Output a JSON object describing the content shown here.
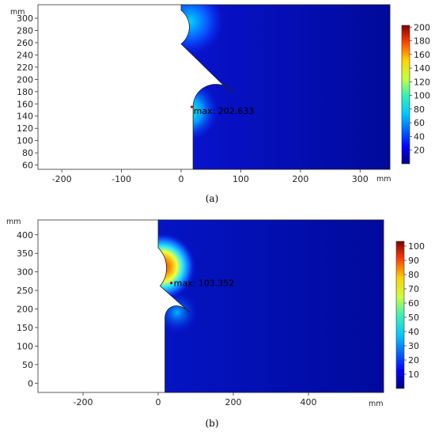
{
  "chart_data": [
    {
      "type": "heatmap",
      "caption": "(a)",
      "x_unit": "mm",
      "y_unit": "mm",
      "xlim": [
        -240,
        350
      ],
      "ylim": [
        53,
        322
      ],
      "x_ticks": [
        -200,
        -100,
        0,
        100,
        200,
        300
      ],
      "y_ticks": [
        60,
        80,
        100,
        120,
        140,
        160,
        180,
        200,
        220,
        240,
        260,
        280,
        300
      ],
      "colorbar_range": [
        0,
        202.633
      ],
      "colorbar_ticks": [
        20,
        40,
        60,
        80,
        100,
        120,
        140,
        160,
        180,
        200
      ],
      "annotation": "max: 202.633",
      "max_point": [
        18,
        155
      ]
    },
    {
      "type": "heatmap",
      "caption": "(b)",
      "x_unit": "mm",
      "y_unit": "mm",
      "xlim": [
        -320,
        600
      ],
      "ylim": [
        -25,
        440
      ],
      "x_ticks": [
        -200,
        0,
        200,
        400
      ],
      "y_ticks": [
        0,
        50,
        100,
        150,
        200,
        250,
        300,
        350,
        400
      ],
      "colorbar_range": [
        0,
        103.352
      ],
      "colorbar_ticks": [
        10,
        20,
        30,
        40,
        50,
        60,
        70,
        80,
        90,
        100
      ],
      "annotation": "max: 103.352",
      "max_point": [
        35,
        270
      ]
    }
  ]
}
